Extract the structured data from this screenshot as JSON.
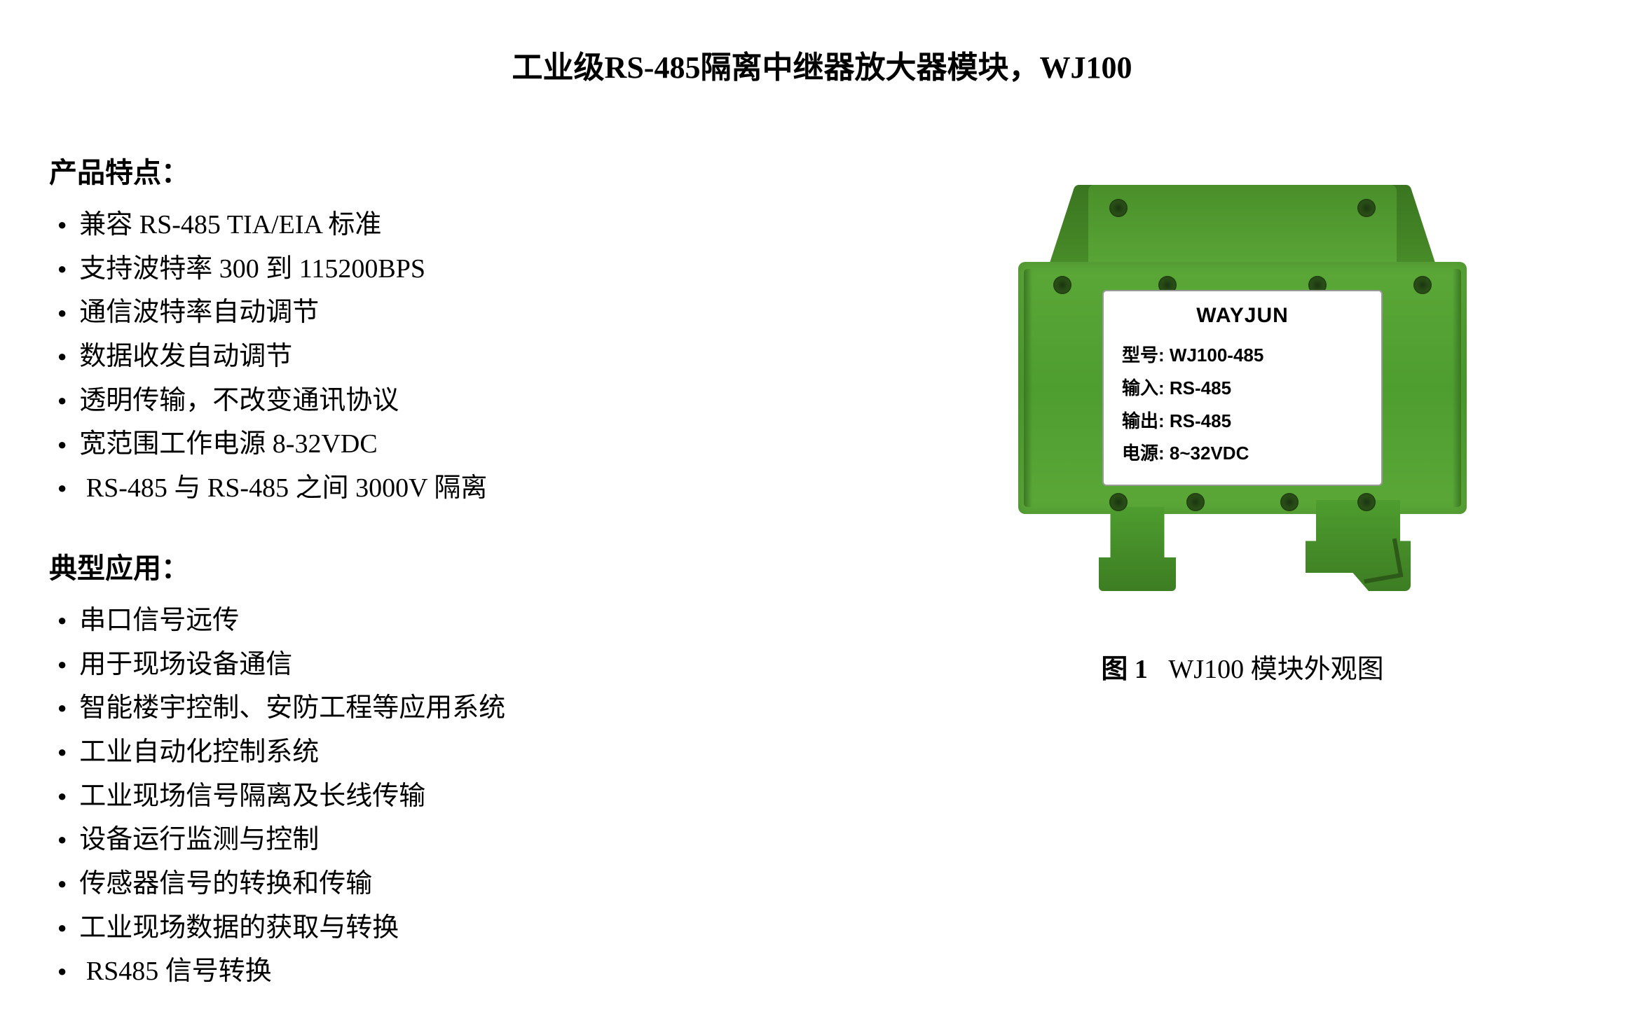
{
  "page_title": "工业级RS-485隔离中继器放大器模块，WJ100",
  "features": {
    "heading": "产品特点：",
    "items": [
      "兼容 RS-485 TIA/EIA 标准",
      "支持波特率 300 到 115200BPS",
      "通信波特率自动调节",
      "数据收发自动调节",
      "透明传输，不改变通讯协议",
      "宽范围工作电源 8-32VDC",
      " RS-485 与 RS-485 之间 3000V 隔离"
    ]
  },
  "applications": {
    "heading": "典型应用：",
    "items": [
      "串口信号远传",
      "用于现场设备通信",
      "智能楼宇控制、安防工程等应用系统",
      "工业自动化控制系统",
      "工业现场信号隔离及长线传输",
      "设备运行监测与控制",
      "传感器信号的转换和传输",
      "工业现场数据的获取与转换",
      " RS485 信号转换"
    ]
  },
  "module_label": {
    "brand": "WAYJUN",
    "model_key": "型号:",
    "model_value": "WJ100-485",
    "input_key": "输入:",
    "input_value": "RS-485",
    "output_key": "输出:",
    "output_value": "RS-485",
    "power_key": "电源:",
    "power_value": "8~32VDC"
  },
  "figure_caption": {
    "number": "图 1",
    "text": "WJ100 模块外观图"
  },
  "colors": {
    "module_green_light": "#5ba838",
    "module_green_dark": "#3d7d23",
    "label_bg": "#ffffff",
    "text": "#000000"
  }
}
